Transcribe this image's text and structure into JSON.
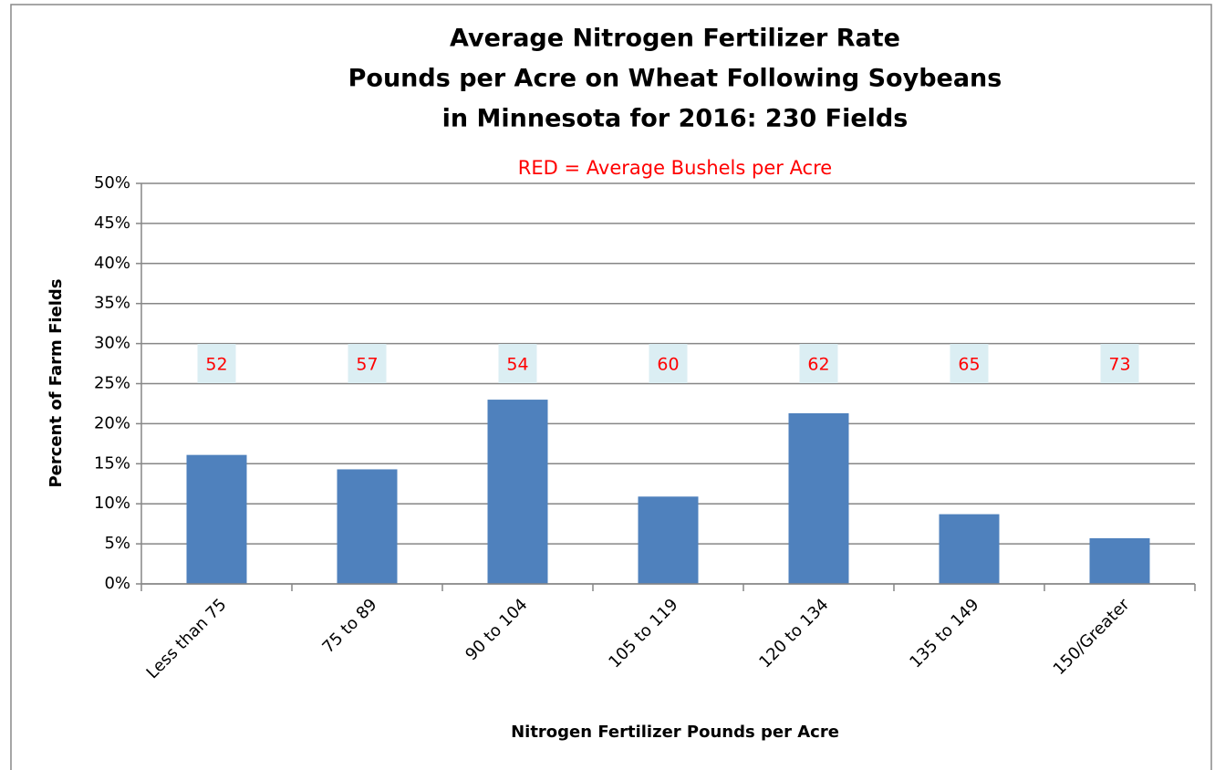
{
  "chart_data": {
    "type": "bar",
    "title": [
      "Average Nitrogen Fertilizer Rate",
      "Pounds per Acre on Wheat Following Soybeans",
      "in Minnesota for 2016: 230 Fields"
    ],
    "subtitle": "RED = Average Bushels per Acre",
    "x_label": "Nitrogen Fertilizer Pounds per Acre",
    "y_label": "Percent of Farm Fields",
    "categories": [
      "Less than 75",
      "75 to 89",
      "90 to 104",
      "105 to 119",
      "120 to 134",
      "135 to 149",
      "150/Greater"
    ],
    "values": [
      16.1,
      14.3,
      23.0,
      10.9,
      21.3,
      8.7,
      5.7
    ],
    "annotations": [
      52,
      57,
      54,
      60,
      62,
      65,
      73
    ],
    "color": "#4f81bd",
    "annotation_color": "#ff0000",
    "ylim": [
      0,
      50
    ],
    "yticks": [
      {
        "value": 0,
        "label": "0%"
      },
      {
        "value": 5,
        "label": "5%"
      },
      {
        "value": 10,
        "label": "10%"
      },
      {
        "value": 15,
        "label": "15%"
      },
      {
        "value": 20,
        "label": "20%"
      },
      {
        "value": 25,
        "label": "25%"
      },
      {
        "value": 30,
        "label": "30%"
      },
      {
        "value": 35,
        "label": "35%"
      },
      {
        "value": 40,
        "label": "40%"
      },
      {
        "value": 45,
        "label": "45%"
      },
      {
        "value": 50,
        "label": "50%"
      }
    ],
    "grid": true
  }
}
